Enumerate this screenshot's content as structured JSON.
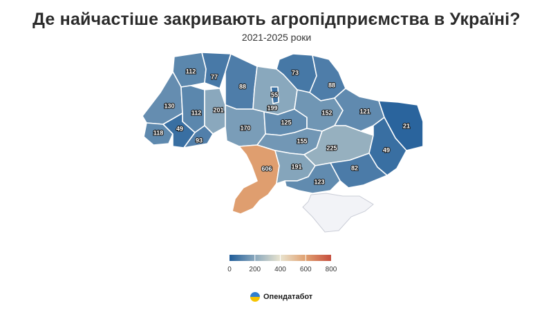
{
  "title": "Де найчастіше закривають агропідприємства в Україні?",
  "subtitle": "2021-2025 роки",
  "brand": {
    "name": "Опендатабот",
    "logo_icon": "opendatabot-logo-icon"
  },
  "chart_data": {
    "type": "choropleth",
    "scale": {
      "min": 0,
      "max": 800,
      "ticks": [
        "0",
        "200",
        "400",
        "600",
        "800"
      ],
      "colors": [
        "#1f5c99",
        "#8aa8bd",
        "#e9e4cf",
        "#e0a070",
        "#c64e3e"
      ]
    },
    "regions": [
      {
        "id": "volyn",
        "value": 112
      },
      {
        "id": "rivne",
        "value": 77
      },
      {
        "id": "zhytomyr",
        "value": 88
      },
      {
        "id": "kyiv-oblast",
        "value": 199
      },
      {
        "id": "kyiv-city",
        "value": 55
      },
      {
        "id": "chernihiv",
        "value": 73
      },
      {
        "id": "sumy",
        "value": 88
      },
      {
        "id": "lviv",
        "value": 130
      },
      {
        "id": "ternopil",
        "value": 112
      },
      {
        "id": "khmelnytskyi",
        "value": 201
      },
      {
        "id": "vinnytsia",
        "value": 170
      },
      {
        "id": "cherkasy",
        "value": 125
      },
      {
        "id": "poltava",
        "value": 152
      },
      {
        "id": "kharkiv",
        "value": 121
      },
      {
        "id": "luhansk",
        "value": 21
      },
      {
        "id": "zakarpattia",
        "value": 118
      },
      {
        "id": "ivano-frankivsk",
        "value": 49
      },
      {
        "id": "chernivtsi",
        "value": 93
      },
      {
        "id": "kirovohrad",
        "value": 155
      },
      {
        "id": "dnipropetrovsk",
        "value": 225
      },
      {
        "id": "donetsk",
        "value": 49
      },
      {
        "id": "odesa",
        "value": 606
      },
      {
        "id": "mykolaiv",
        "value": 191
      },
      {
        "id": "zaporizhzhia",
        "value": 82
      },
      {
        "id": "kherson",
        "value": 123
      },
      {
        "id": "crimea",
        "value": null
      }
    ]
  }
}
